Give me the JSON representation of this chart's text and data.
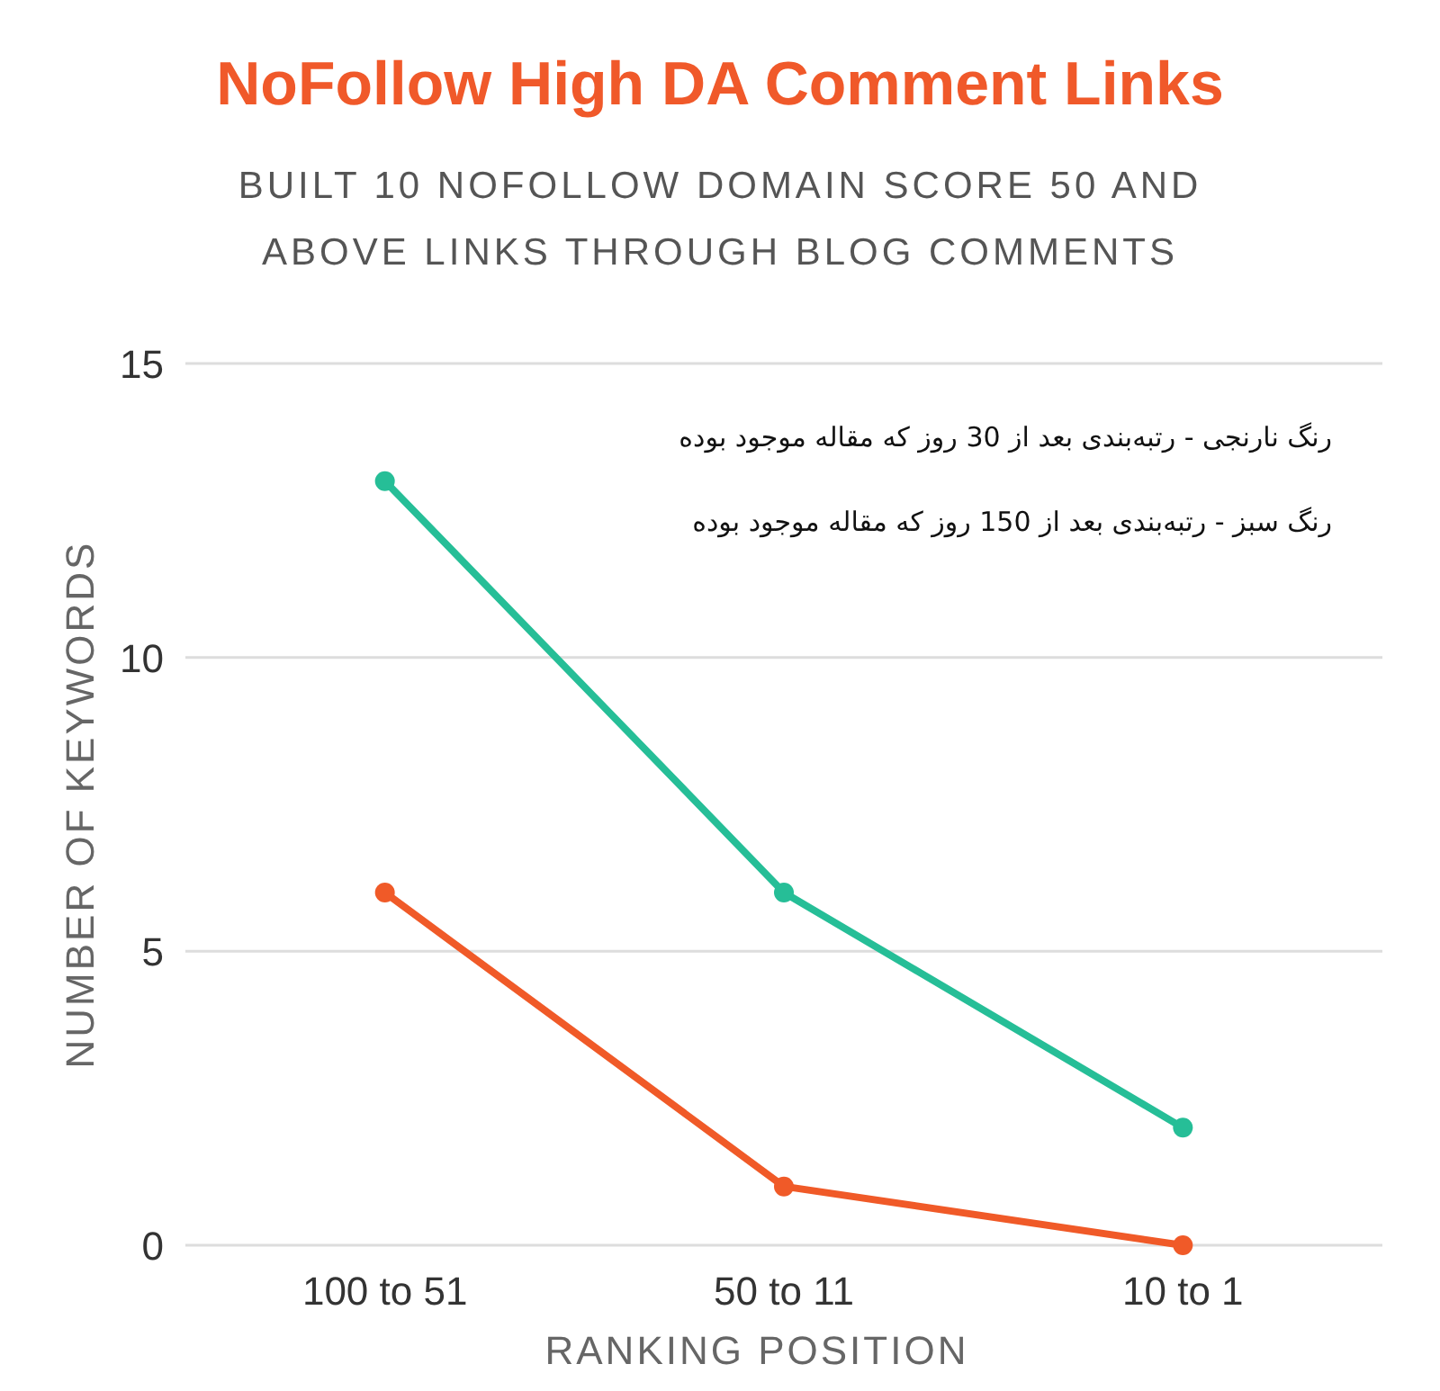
{
  "chart_data": {
    "type": "line",
    "title": "NoFollow High DA Comment Links",
    "subtitle": "BUILT 10 NOFOLLOW DOMAIN SCORE 50 AND ABOVE LINKS THROUGH BLOG COMMENTS",
    "xlabel": "RANKING POSITION",
    "ylabel": "NUMBER OF KEYWORDS",
    "categories": [
      "100 to 51",
      "50 to 11",
      "10 to 1"
    ],
    "series": [
      {
        "color": "#f05a28",
        "values": [
          6,
          1,
          0
        ]
      },
      {
        "color": "#26be97",
        "values": [
          13,
          6,
          2
        ]
      }
    ],
    "annotations": [
      "رنگ نارنجی - رتبه‌بندی بعد از 30 روز که مقاله موجود بوده",
      "رنگ سبز - رتبه‌بندی بعد از 150 روز که مقاله موجود بوده"
    ],
    "ylim": [
      0,
      15
    ],
    "yticks": [
      0,
      5,
      10,
      15
    ],
    "grid": "y",
    "marker": "circle",
    "line_style": "solid"
  }
}
